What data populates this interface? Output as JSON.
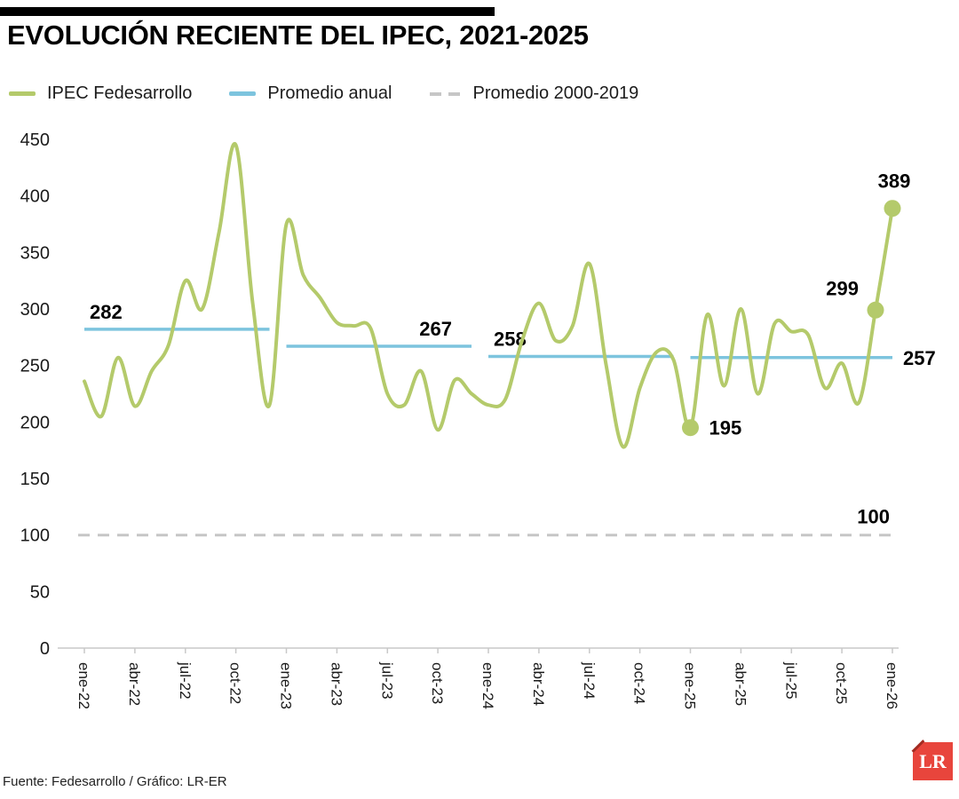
{
  "header": {
    "title": "EVOLUCIÓN RECIENTE DEL IPEC, 2021-2025"
  },
  "legend": [
    {
      "label": "IPEC Fedesarrollo",
      "style": "solid",
      "color": "#b4ca6b"
    },
    {
      "label": "Promedio anual",
      "style": "solid",
      "color": "#7dc4de"
    },
    {
      "label": "Promedio 2000-2019",
      "style": "dashed",
      "color": "#c6c6c6"
    }
  ],
  "footer": {
    "source": "Fuente: Fedesarrollo / Gráfico: LR-ER",
    "logo_text": "LR"
  },
  "chart_data": {
    "type": "line",
    "title": "EVOLUCIÓN RECIENTE DEL IPEC, 2021-2025",
    "xlabel": "",
    "ylabel": "",
    "ylim": [
      0,
      450
    ],
    "y_ticks": [
      0,
      50,
      100,
      150,
      200,
      250,
      300,
      350,
      400,
      450
    ],
    "x_tick_labels": [
      "ene-22",
      "abr-22",
      "jul-22",
      "oct-22",
      "ene-23",
      "abr-23",
      "jul-23",
      "oct-23",
      "ene-24",
      "abr-24",
      "jul-24",
      "oct-24",
      "ene-25",
      "abr-25",
      "jul-25",
      "oct-25",
      "ene-26"
    ],
    "months_per_tick": 3,
    "grid": false,
    "legend_position": "top",
    "series": [
      {
        "name": "IPEC Fedesarrollo",
        "start": "ene-22",
        "end": "ene-26",
        "frequency": "monthly",
        "values": [
          236,
          205,
          257,
          214,
          245,
          268,
          325,
          300,
          368,
          445,
          305,
          215,
          375,
          330,
          310,
          288,
          285,
          283,
          225,
          215,
          245,
          193,
          237,
          225,
          215,
          220,
          272,
          305,
          272,
          285,
          340,
          250,
          178,
          230,
          262,
          255,
          195,
          295,
          232,
          300,
          225,
          287,
          280,
          277,
          230,
          252,
          217,
          299,
          389
        ]
      }
    ],
    "annual_averages": [
      {
        "year": "2022",
        "label": "282",
        "value": 282,
        "start_month": 0,
        "end_month": 11,
        "label_pos": "start-above"
      },
      {
        "year": "2023",
        "label": "267",
        "value": 267,
        "start_month": 12,
        "end_month": 23,
        "label_pos": "end-above"
      },
      {
        "year": "2024",
        "label": "258",
        "value": 258,
        "start_month": 24,
        "end_month": 35,
        "label_pos": "start-above"
      },
      {
        "year": "2025",
        "label": "257",
        "value": 257,
        "start_month": 36,
        "end_month": 48,
        "label_pos": "right"
      }
    ],
    "baseline": {
      "name": "Promedio 2000-2019",
      "label": "100",
      "value": 100
    },
    "highlighted_points": [
      {
        "month": 36,
        "value": 195,
        "label": "195",
        "label_pos": "right"
      },
      {
        "month": 47,
        "value": 299,
        "label": "299",
        "label_pos": "left"
      },
      {
        "month": 48,
        "value": 389,
        "label": "389",
        "label_pos": "above"
      }
    ],
    "colors": {
      "series": "#b4ca6b",
      "average": "#7dc4de",
      "baseline": "#c6c6c6",
      "axis": "#c9c9c9",
      "label_text": "#000000"
    }
  }
}
